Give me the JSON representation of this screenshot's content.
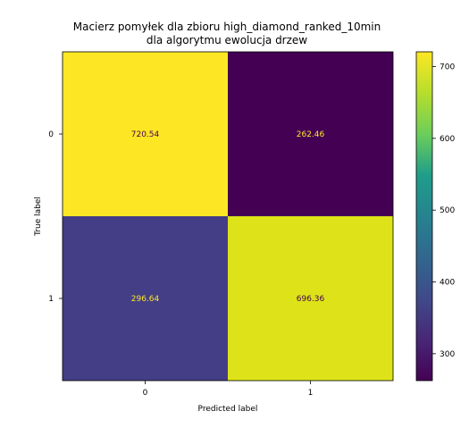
{
  "chart_data": {
    "type": "heatmap",
    "title": [
      "Macierz pomyłek dla zbioru high_diamond_ranked_10min",
      "dla algorytmu ewolucja drzew"
    ],
    "xlabel": "Predicted label",
    "ylabel": "True label",
    "x_ticks": [
      "0",
      "1"
    ],
    "y_ticks": [
      "0",
      "1"
    ],
    "values": [
      [
        720.54,
        262.46
      ],
      [
        296.64,
        696.36
      ]
    ],
    "value_labels": [
      [
        "720.54",
        "262.46"
      ],
      [
        "296.64",
        "696.36"
      ]
    ],
    "cell_colors": [
      [
        "#fde725",
        "#440154"
      ],
      [
        "#433e85",
        "#dde318"
      ]
    ],
    "value_text_colors": [
      [
        "#440154",
        "#fde725"
      ],
      [
        "#fde725",
        "#440154"
      ]
    ],
    "colormap": "viridis",
    "colorbar": {
      "range": [
        262.46,
        720.54
      ],
      "ticks": [
        300,
        400,
        500,
        600,
        700
      ],
      "tick_labels": [
        "300",
        "400",
        "500",
        "600",
        "700"
      ]
    }
  }
}
